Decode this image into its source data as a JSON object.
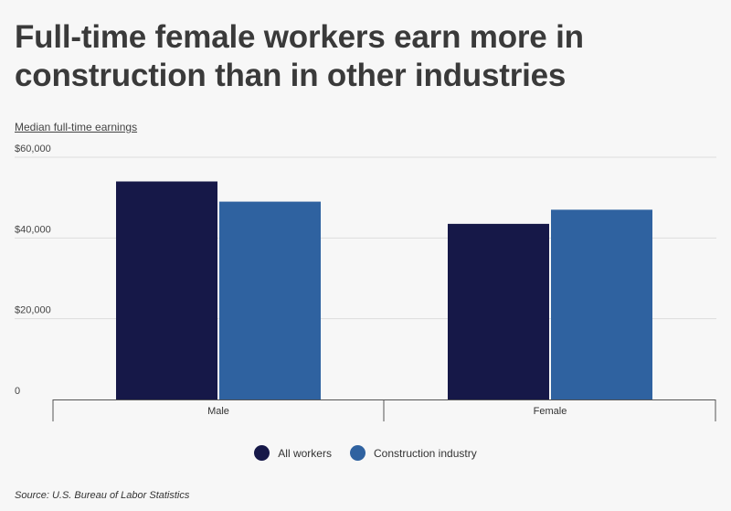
{
  "title": "Full-time female workers earn more in construction than in other industries",
  "source": "Source: U.S. Bureau of Labor Statistics",
  "colors": {
    "all_workers": "#161848",
    "construction": "#2f62a0",
    "grid": "#dddddd",
    "axis": "#555555"
  },
  "chart_data": {
    "type": "bar",
    "title": "Full-time female workers earn more in construction than in other industries",
    "ylabel": "Median full-time earnings",
    "categories": [
      "Male",
      "Female"
    ],
    "series": [
      {
        "name": "All workers",
        "values": [
          54000,
          43500
        ]
      },
      {
        "name": "Construction industry",
        "values": [
          49000,
          47000
        ]
      }
    ],
    "ylim": [
      0,
      60000
    ],
    "y_ticks": [
      0,
      20000,
      40000,
      60000
    ],
    "y_tick_labels": [
      "0",
      "$20,000",
      "$40,000",
      "$60,000"
    ],
    "grid": true,
    "legend_position": "bottom"
  }
}
